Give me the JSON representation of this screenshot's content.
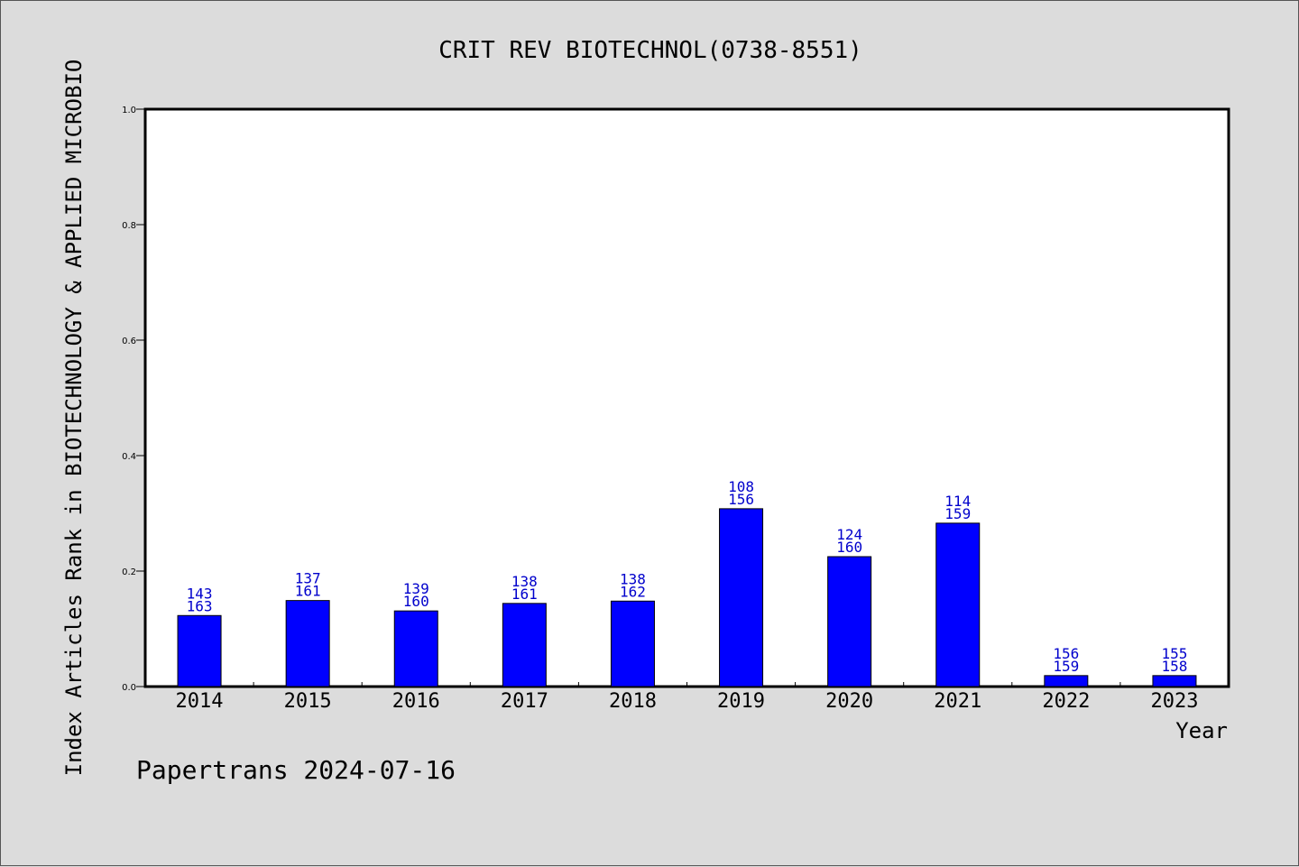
{
  "chart_data": {
    "type": "bar",
    "title": "CRIT REV BIOTECHNOL(0738-8551)",
    "xlabel": "Year",
    "ylabel": "Index Articles Rank in BIOTECHNOLOGY & APPLIED MICROBIO",
    "ylim": [
      0,
      1.0
    ],
    "yticks": [
      "0.0",
      "0.2",
      "0.4",
      "0.6",
      "0.8",
      "1.0"
    ],
    "categories": [
      "2014",
      "2015",
      "2016",
      "2017",
      "2018",
      "2019",
      "2020",
      "2021",
      "2022",
      "2023"
    ],
    "values": [
      0.123,
      0.149,
      0.131,
      0.144,
      0.148,
      0.308,
      0.225,
      0.283,
      0.019,
      0.019
    ],
    "labels_top": [
      "143",
      "137",
      "139",
      "138",
      "138",
      "108",
      "124",
      "114",
      "156",
      "155"
    ],
    "labels_bottom": [
      "163",
      "161",
      "160",
      "161",
      "162",
      "156",
      "160",
      "159",
      "159",
      "158"
    ],
    "grid": false,
    "bar_color": "#0000ff",
    "label_color": "#0000cc",
    "background_color": "#dcdcdc",
    "plot_background": "#ffffff"
  },
  "footer": "Papertrans 2024-07-16"
}
